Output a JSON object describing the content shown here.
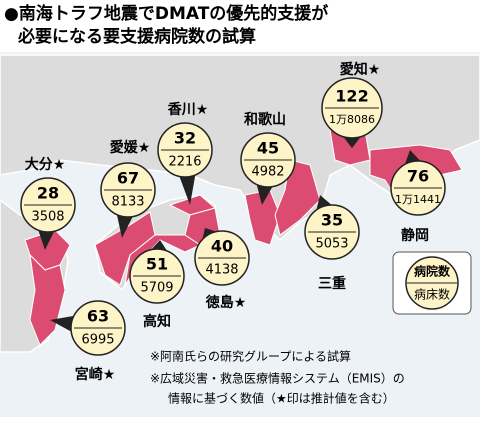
{
  "header": {
    "title_lines": [
      "●南海トラフ地震でDMATの優先的支援が",
      "必要になる要支援病院数の試算"
    ]
  },
  "prefectures": [
    {
      "name": "大分★",
      "hospitals": 28,
      "beds": "3508"
    },
    {
      "name": "愛媛★",
      "hospitals": 67,
      "beds": "8133"
    },
    {
      "name": "香川★",
      "hospitals": 32,
      "beds": "2216"
    },
    {
      "name": "和歌山",
      "hospitals": 45,
      "beds": "4982"
    },
    {
      "name": "愛知★",
      "hospitals": 122,
      "beds": "1万8086"
    },
    {
      "name": "静岡",
      "hospitals": 76,
      "beds": "1万1441"
    },
    {
      "name": "三重",
      "hospitals": 35,
      "beds": "5053"
    },
    {
      "name": "徳島★",
      "hospitals": 40,
      "beds": "4138"
    },
    {
      "name": "高知",
      "hospitals": 51,
      "beds": "5709"
    },
    {
      "name": "宮崎★",
      "hospitals": 63,
      "beds": "6995"
    }
  ],
  "legend": {
    "top": "病院数",
    "bottom": "病床数"
  },
  "notes": [
    "※阿南氏らの研究グループによる試算",
    "※広域災害・救急医療情報システム（EMIS）の",
    "情報に基づく数値（★印は推計値を含む）"
  ]
}
